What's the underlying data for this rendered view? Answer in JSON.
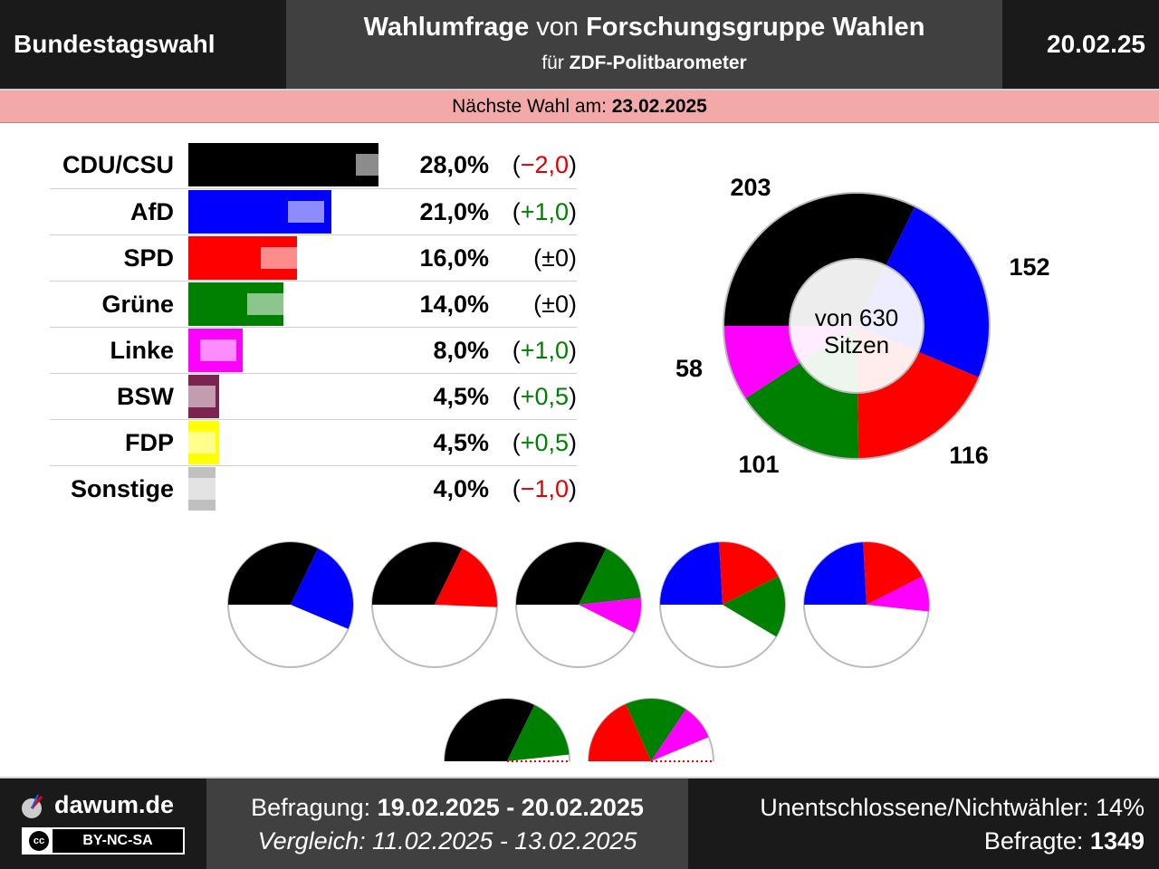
{
  "header": {
    "left": "Bundestagswahl",
    "title_part1": "Wahlumfrage",
    "title_part2": " von ",
    "title_part3": "Forschungsgruppe Wahlen",
    "subtitle_part1": "für ",
    "subtitle_part2": "ZDF-Politbarometer",
    "date": "20.02.25"
  },
  "next_election": {
    "label": "Nächste Wahl am: ",
    "date": "23.02.2025"
  },
  "colors": {
    "CDU/CSU": "#000000",
    "AfD": "#0000ff",
    "SPD": "#ff0000",
    "Grüne": "#008000",
    "Linke": "#ff00ff",
    "BSW": "#7b2450",
    "FDP": "#ffff00",
    "Sonstige": "#c0c0c0"
  },
  "chart_data": [
    {
      "type": "bar",
      "categories": [
        "CDU/CSU",
        "AfD",
        "SPD",
        "Grüne",
        "Linke",
        "BSW",
        "FDP",
        "Sonstige"
      ],
      "values": [
        28.0,
        21.0,
        16.0,
        14.0,
        8.0,
        4.5,
        4.5,
        4.0
      ],
      "previous_values": [
        30.0,
        20.0,
        16.0,
        14.0,
        7.0,
        4.0,
        4.0,
        5.0
      ],
      "value_labels": [
        "28,0%",
        "21,0%",
        "16,0%",
        "14,0%",
        "8,0%",
        "4,5%",
        "4,5%",
        "4,0%"
      ],
      "change_labels": [
        "−2,0",
        "+1,0",
        "±0",
        "±0",
        "+1,0",
        "+0,5",
        "+0,5",
        "−1,0"
      ],
      "change_sign": [
        "neg",
        "pos",
        "neu",
        "neu",
        "pos",
        "pos",
        "pos",
        "neg"
      ]
    },
    {
      "type": "pie",
      "labels": [
        "CDU/CSU",
        "AfD",
        "SPD",
        "Grüne",
        "Linke"
      ],
      "values": [
        203,
        152,
        116,
        101,
        58
      ],
      "total_label": "von 630 Sitzen"
    },
    {
      "type": "pie",
      "coalitions": [
        [
          "CDU/CSU",
          "AfD"
        ],
        [
          "CDU/CSU",
          "SPD"
        ],
        [
          "CDU/CSU",
          "Grüne",
          "Linke"
        ],
        [
          "AfD",
          "SPD",
          "Grüne"
        ],
        [
          "AfD",
          "SPD",
          "Linke"
        ],
        [
          "CDU/CSU",
          "Grüne"
        ],
        [
          "SPD",
          "Grüne",
          "Linke"
        ]
      ]
    }
  ],
  "footer": {
    "site": "dawum.de",
    "license_cc": "cc",
    "license": "BY-NC-SA",
    "survey_label": "Befragung: ",
    "survey_dates": "19.02.2025 - 20.02.2025",
    "compare_text": "Vergleich: 11.02.2025 - 13.02.2025",
    "undecided": "Unentschlossene/Nichtwähler: 14%",
    "respondents_label": "Befragte: ",
    "respondents": "1349"
  }
}
